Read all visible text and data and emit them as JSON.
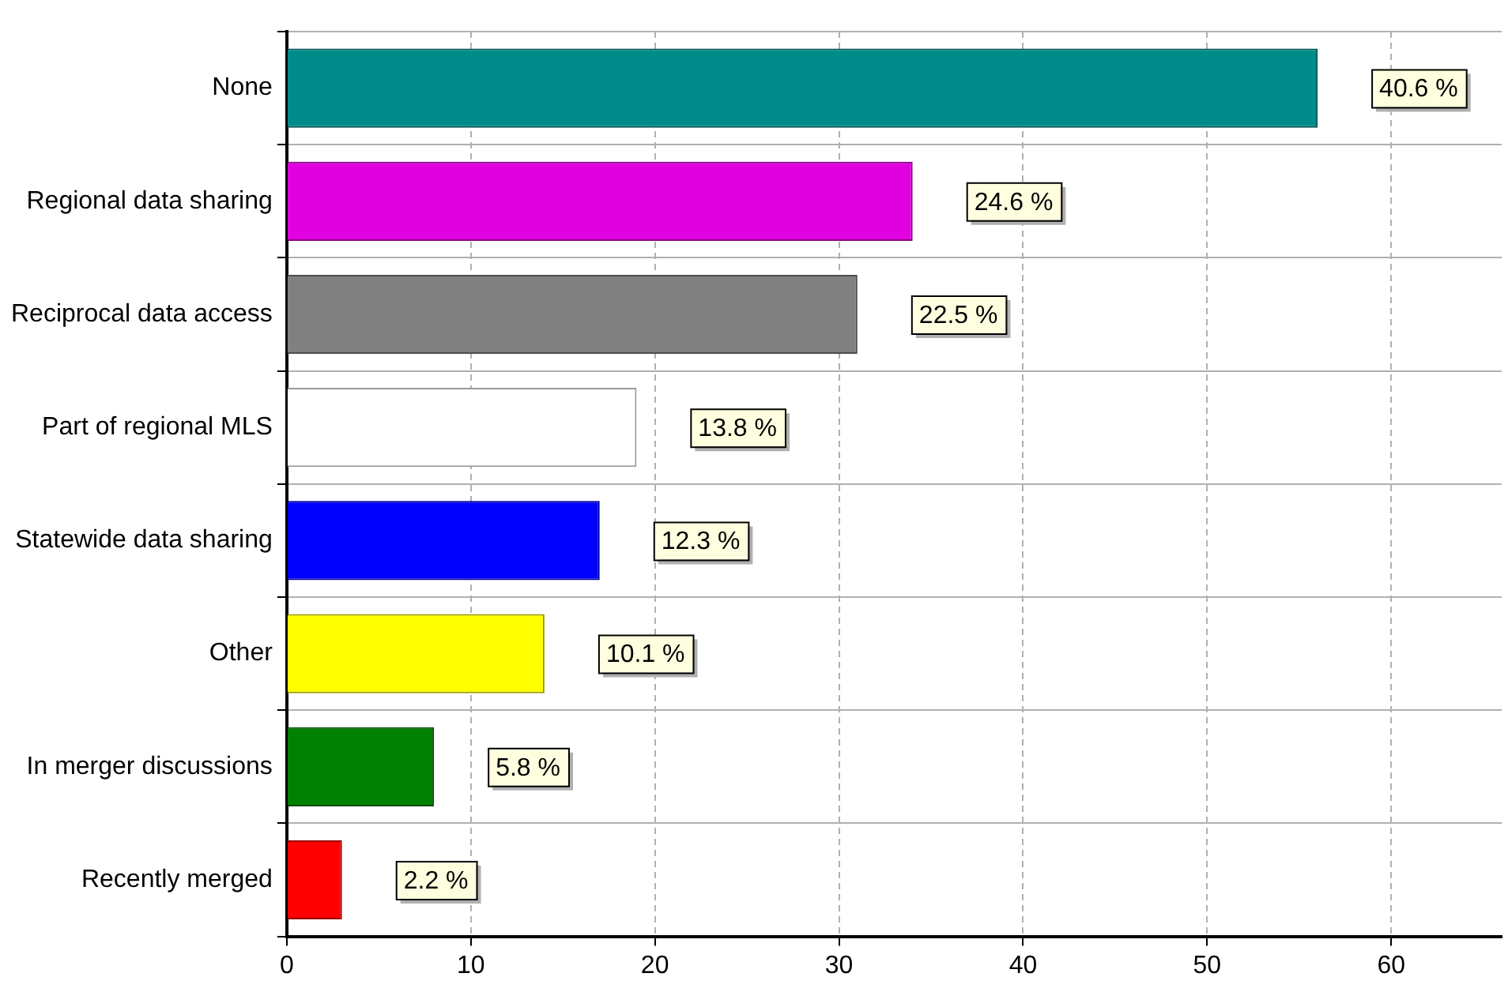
{
  "chart_data": {
    "type": "bar",
    "orientation": "horizontal",
    "categories": [
      "None",
      "Regional data sharing",
      "Reciprocal data access",
      "Part of regional MLS",
      "Statewide data sharing",
      "Other",
      "In merger discussions",
      "Recently merged"
    ],
    "values": [
      56,
      34,
      31,
      19,
      17,
      14,
      8,
      3
    ],
    "colors": [
      "#008b8b",
      "#e000e0",
      "#808080",
      "#ffffff",
      "#0000ff",
      "#ffff00",
      "#008000",
      "#ff0000"
    ],
    "annotations": [
      {
        "text": "40.6 %",
        "x": 56,
        "y": "None"
      },
      {
        "text": "24.6 %",
        "x": 34,
        "y": "Regional data sharing"
      },
      {
        "text": "22.5 %",
        "x": 31,
        "y": "Reciprocal data access"
      },
      {
        "text": "13.8 %",
        "x": 19,
        "y": "Part of regional MLS"
      },
      {
        "text": "12.3 %",
        "x": 17,
        "y": "Statewide data sharing"
      },
      {
        "text": "10.1 %",
        "x": 14,
        "y": "Other"
      },
      {
        "text": "5.8 %",
        "x": 8,
        "y": "In merger discussions"
      },
      {
        "text": "2.2 %",
        "x": 3,
        "y": "Recently merged"
      }
    ],
    "xlim": [
      0,
      66
    ],
    "xticks": [
      0,
      10,
      20,
      30,
      40,
      50,
      60
    ],
    "grid": true,
    "legend": false
  }
}
